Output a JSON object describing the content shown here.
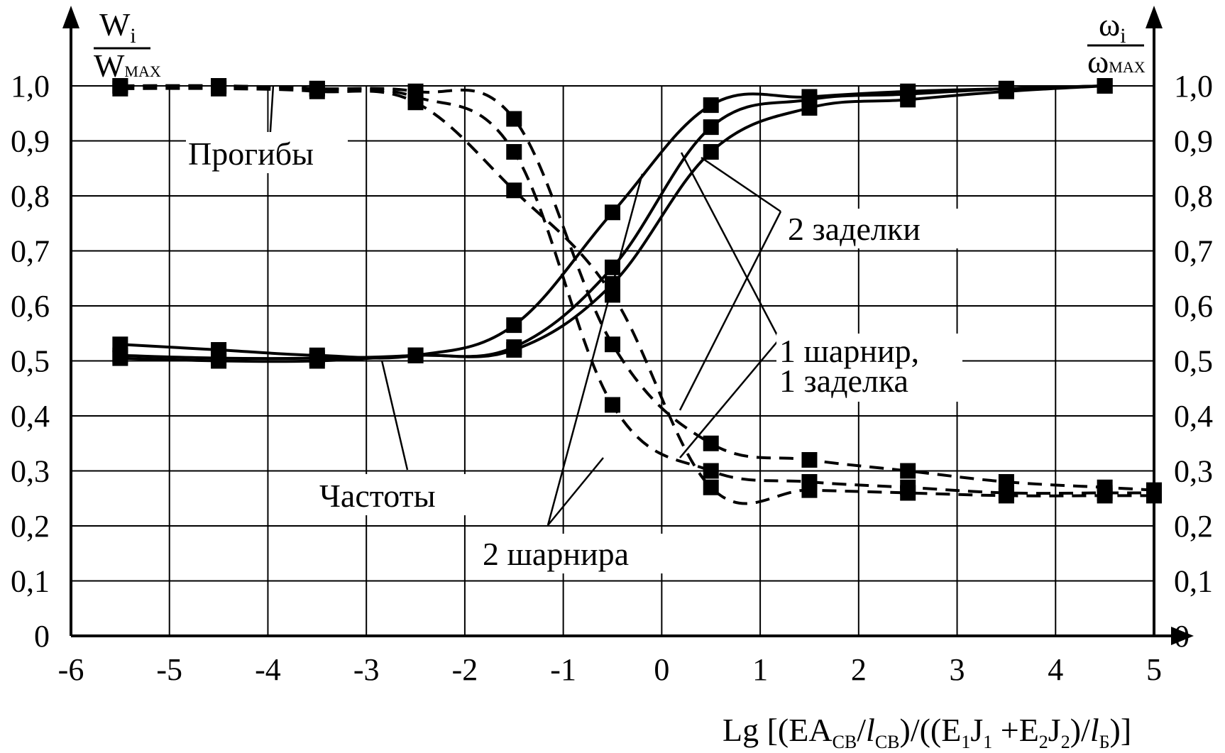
{
  "chart_data": {
    "type": "line",
    "xlabel": "Lg [(EA_СВ/l_СВ)/((E1J1+E2J2)/l_Б)]",
    "ylabel_left": "Wi / Wmax",
    "ylabel_right": "ωi / ωmax",
    "xlim": [
      -6,
      5
    ],
    "ylim": [
      0,
      1.0
    ],
    "x_ticks": [
      "-6",
      "-5",
      "-4",
      "-3",
      "-2",
      "-1",
      "0",
      "1",
      "2",
      "3",
      "4",
      "5"
    ],
    "y_ticks_left": [
      "0",
      "0,1",
      "0,2",
      "0,3",
      "0,4",
      "0,5",
      "0,6",
      "0,7",
      "0,8",
      "0,9",
      "1,0"
    ],
    "y_ticks_right": [
      "0",
      "0,1",
      "0,2",
      "0,3",
      "0,4",
      "0,5",
      "0,6",
      "0,7",
      "0,8",
      "0,9",
      "1,0"
    ],
    "grid": true,
    "x_label_parts": {
      "lg": "Lg [(EA",
      "sub_cb1": "СВ",
      "mid1": "/",
      "l1": "l",
      "sub_cb2": "СВ",
      "mid2": ")/((E",
      "sub1a": "1",
      "j1": "J",
      "sub1b": "1",
      "plus": " +E",
      "sub2a": "2",
      "j2": "J",
      "sub2b": "2",
      "mid3": ")/",
      "l2": "l",
      "sub_b": "Б",
      "end": ")]"
    },
    "y_left_label": {
      "num": "W",
      "num_sub": "i",
      "den": "W",
      "den_sub": "MAX"
    },
    "y_right_label": {
      "num": "ω",
      "num_sub": "i",
      "den": "ω",
      "den_sub": "MAX"
    },
    "annotations": {
      "deflections": "Прогибы",
      "frequencies": "Частоты",
      "two_clamps": "2 заделки",
      "hinge_clamp_1": "1 шарнир,",
      "hinge_clamp_2": "1 заделка",
      "two_hinges": "2 шарнира"
    },
    "series": [
      {
        "group": "deflections",
        "style": "dashed",
        "support": "2 шарнира",
        "x": [
          -5.5,
          -4.5,
          -3.5,
          -2.5,
          -1.5,
          -0.5,
          0.5,
          1.5,
          2.5,
          3.5,
          4.5,
          5.0
        ],
        "y": [
          1.0,
          1.0,
          0.995,
          0.99,
          0.94,
          0.53,
          0.35,
          0.32,
          0.3,
          0.28,
          0.27,
          0.265
        ]
      },
      {
        "group": "deflections",
        "style": "dashed",
        "support": "1 шарнир, 1 заделка",
        "x": [
          -5.5,
          -4.5,
          -3.5,
          -2.5,
          -1.5,
          -0.5,
          0.5,
          1.5,
          2.5,
          3.5,
          4.5,
          5.0
        ],
        "y": [
          1.0,
          1.0,
          0.995,
          0.98,
          0.88,
          0.42,
          0.3,
          0.28,
          0.27,
          0.26,
          0.26,
          0.26
        ]
      },
      {
        "group": "deflections",
        "style": "dashed",
        "support": "2 заделки",
        "x": [
          -5.5,
          -4.5,
          -3.5,
          -2.5,
          -1.5,
          -0.5,
          0.5,
          1.5,
          2.5,
          3.5,
          4.5,
          5.0
        ],
        "y": [
          0.995,
          0.995,
          0.99,
          0.97,
          0.81,
          0.62,
          0.27,
          0.265,
          0.26,
          0.255,
          0.255,
          0.255
        ]
      },
      {
        "group": "frequencies",
        "style": "solid",
        "support": "2 шарнира",
        "x": [
          -5.5,
          -4.5,
          -3.5,
          -2.5,
          -1.5,
          -0.5,
          0.5,
          1.5,
          2.5,
          3.5,
          4.5
        ],
        "y": [
          0.53,
          0.52,
          0.51,
          0.51,
          0.565,
          0.77,
          0.965,
          0.98,
          0.99,
          0.995,
          1.0
        ]
      },
      {
        "group": "frequencies",
        "style": "solid",
        "support": "1 шарнир, 1 заделка",
        "x": [
          -5.5,
          -4.5,
          -3.5,
          -2.5,
          -1.5,
          -0.5,
          0.5,
          1.5,
          2.5,
          3.5,
          4.5
        ],
        "y": [
          0.51,
          0.505,
          0.505,
          0.51,
          0.525,
          0.67,
          0.925,
          0.975,
          0.985,
          0.995,
          1.0
        ]
      },
      {
        "group": "frequencies",
        "style": "solid",
        "support": "2 заделки",
        "x": [
          -5.5,
          -4.5,
          -3.5,
          -2.5,
          -1.5,
          -0.5,
          0.5,
          1.5,
          2.5,
          3.5,
          4.5
        ],
        "y": [
          0.505,
          0.5,
          0.5,
          0.51,
          0.52,
          0.64,
          0.88,
          0.96,
          0.975,
          0.99,
          1.0
        ]
      }
    ]
  }
}
